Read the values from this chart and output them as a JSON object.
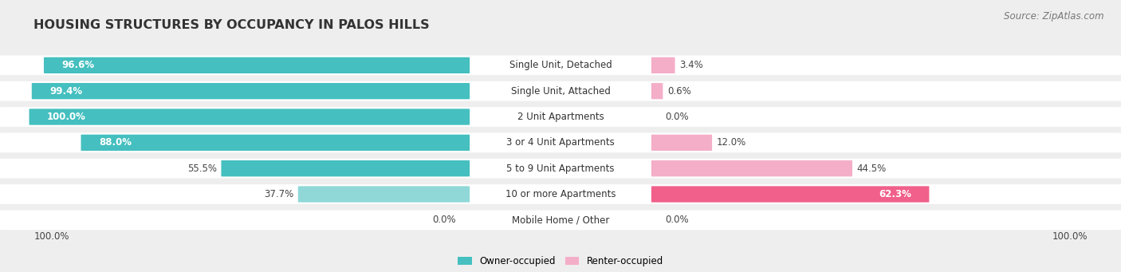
{
  "title": "HOUSING STRUCTURES BY OCCUPANCY IN PALOS HILLS",
  "source": "Source: ZipAtlas.com",
  "categories": [
    "Single Unit, Detached",
    "Single Unit, Attached",
    "2 Unit Apartments",
    "3 or 4 Unit Apartments",
    "5 to 9 Unit Apartments",
    "10 or more Apartments",
    "Mobile Home / Other"
  ],
  "owner_pct": [
    96.6,
    99.4,
    100.0,
    88.0,
    55.5,
    37.7,
    0.0
  ],
  "renter_pct": [
    3.4,
    0.6,
    0.0,
    12.0,
    44.5,
    62.3,
    0.0
  ],
  "owner_color": "#45bfbf",
  "owner_color_light": "#90d8d8",
  "renter_color": "#f0608a",
  "renter_color_light": "#f4aec8",
  "bg_color": "#eeeeee",
  "row_bg_color": "#ffffff",
  "title_fontsize": 11.5,
  "source_fontsize": 8.5,
  "label_fontsize": 8.5,
  "bar_height": 0.62,
  "owner_threshold_dark": 55.0,
  "renter_threshold_dark": 50.0
}
